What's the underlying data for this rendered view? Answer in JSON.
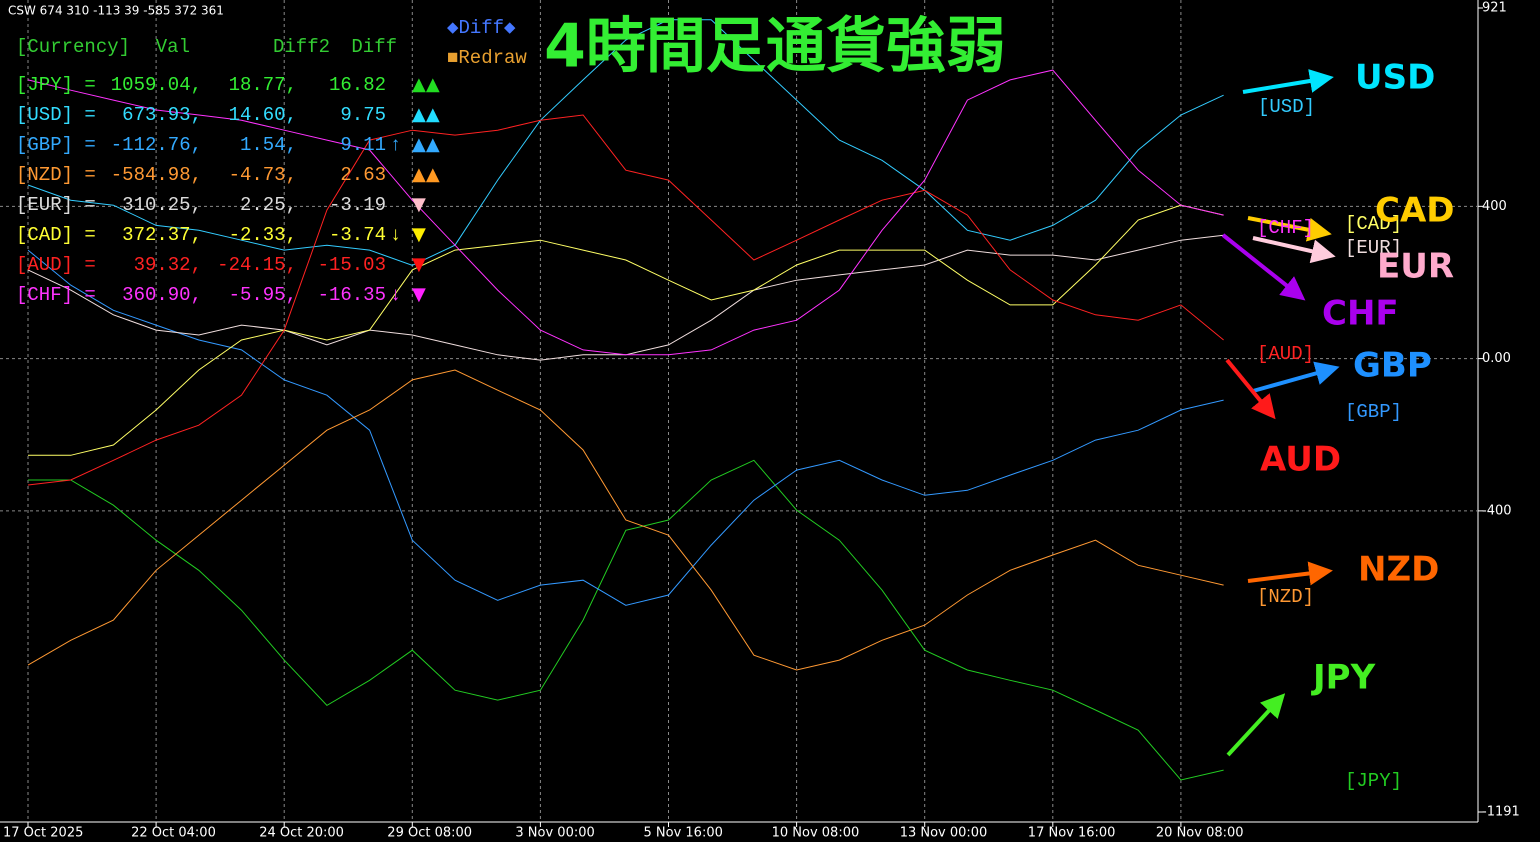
{
  "header_text": "CSW 674 310 -113 39 -585 372 361",
  "legend_items": [
    {
      "text": "◆Diff◆",
      "color": "#4477ff"
    },
    {
      "text": "■Redraw",
      "color": "#e8a030"
    }
  ],
  "info_table": {
    "header": [
      "[Currency]",
      "Val",
      "Diff2",
      "Diff"
    ],
    "header_color": "#33cc33",
    "rows": [
      {
        "label": "[JPY] =",
        "val": "1059.04,",
        "diff2": "18.77,",
        "diff": "16.82",
        "mark": "▲▲",
        "color": "#33ee33",
        "mark_color": "#22dd22"
      },
      {
        "label": "[USD] =",
        "val": "673.93,",
        "diff2": "14.60,",
        "diff": "9.75",
        "mark": "▲▲",
        "color": "#33ddff",
        "mark_color": "#22ddff"
      },
      {
        "label": "[GBP] =",
        "val": "-112.76,",
        "diff2": "1.54,",
        "diff": "9.11",
        "arrow": "↑",
        "mark": "▲▲",
        "color": "#33aaff",
        "mark_color": "#33aaff"
      },
      {
        "label": "[NZD] =",
        "val": "-584.98,",
        "diff2": "-4.73,",
        "diff": "2.63",
        "mark": "▲▲",
        "color": "#ff9933",
        "mark_color": "#ff9922"
      },
      {
        "label": "[EUR] =",
        "val": "310.25,",
        "diff2": "2.25,",
        "diff": "-3.19",
        "mark": "▼",
        "color": "#dddddd",
        "mark_color": "#ffc0cb"
      },
      {
        "label": "[CAD] =",
        "val": "372.37,",
        "diff2": "-2.33,",
        "diff": "-3.74",
        "arrow": "↓",
        "mark": "▼",
        "color": "#ffff33",
        "mark_color": "#ffee00"
      },
      {
        "label": "[AUD] =",
        "val": "39.32,",
        "diff2": "-24.15,",
        "diff": "-15.03",
        "mark": "▼",
        "color": "#ff2222",
        "mark_color": "#ff1111"
      },
      {
        "label": "[CHF] =",
        "val": "360.90,",
        "diff2": "-5.95,",
        "diff": "-16.35",
        "arrow": "↓",
        "mark": "▼",
        "color": "#ff33ff",
        "mark_color": "#ff22ff"
      }
    ]
  },
  "annotations": [
    {
      "text": "USD",
      "color": "#00e5ff"
    },
    {
      "text": "CAD",
      "color": "#ffcc00"
    },
    {
      "text": "EUR",
      "color": "#ffaacc"
    },
    {
      "text": "CHF",
      "color": "#aa00ee"
    },
    {
      "text": "GBP",
      "color": "#1e90ff"
    },
    {
      "text": "AUD",
      "color": "#ff1a1a"
    },
    {
      "text": "NZD",
      "color": "#ff6600"
    },
    {
      "text": "JPY",
      "color": "#44ee22"
    }
  ],
  "chart_data": {
    "type": "line",
    "title": "4時間足通貨強弱",
    "categories": [
      "17 Oct 2025",
      null,
      null,
      "22 Oct 04:00",
      null,
      null,
      "24 Oct 20:00",
      null,
      null,
      "29 Oct 08:00",
      null,
      null,
      "3 Nov 00:00",
      null,
      null,
      "5 Nov 16:00",
      null,
      null,
      "10 Nov 08:00",
      null,
      null,
      "13 Nov 00:00",
      null,
      null,
      "17 Nov 16:00",
      null,
      null,
      "20 Nov 08:00",
      null
    ],
    "ylim": [
      -1191,
      921
    ],
    "yticks": [
      921,
      400,
      {
        "value": 0,
        "label": "0.00"
      },
      -400,
      -1191
    ],
    "grid": true,
    "series": [
      {
        "name": "[JPY]",
        "color": "#22cc22",
        "values": [
          -319,
          -319,
          -385,
          -477,
          -556,
          -661,
          -792,
          -911,
          -845,
          -766,
          -871,
          -897,
          -871,
          -687,
          -451,
          -424,
          -319,
          -267,
          -398,
          -477,
          -608,
          -766,
          -818,
          -845,
          -871,
          -923,
          -976,
          -1107,
          -1081
        ]
      },
      {
        "name": "[USD]",
        "color": "#33ccff",
        "values": [
          456,
          416,
          403,
          350,
          337,
          311,
          285,
          298,
          285,
          245,
          298,
          469,
          626,
          732,
          837,
          890,
          890,
          784,
          679,
          574,
          521,
          442,
          337,
          311,
          350,
          416,
          548,
          640,
          692
        ]
      },
      {
        "name": "[GBP]",
        "color": "#3399ff",
        "values": [
          285,
          193,
          127,
          88,
          49,
          23,
          -56,
          -96,
          -188,
          -477,
          -582,
          -635,
          -595,
          -582,
          -648,
          -621,
          -490,
          -372,
          -293,
          -267,
          -319,
          -359,
          -346,
          -306,
          -267,
          -214,
          -188,
          -135,
          -109
        ]
      },
      {
        "name": "[NZD]",
        "color": "#ff9933",
        "values": [
          -805,
          -740,
          -687,
          -556,
          -464,
          -372,
          -280,
          -188,
          -135,
          -56,
          -30,
          -83,
          -135,
          -240,
          -424,
          -464,
          -608,
          -779,
          -818,
          -792,
          -740,
          -700,
          -621,
          -556,
          -516,
          -477,
          -543,
          -569,
          -595
        ]
      },
      {
        "name": "[EUR]",
        "color": "#f0dede",
        "values": [
          233,
          180,
          115,
          75,
          62,
          88,
          75,
          36,
          75,
          62,
          36,
          10,
          -4,
          10,
          10,
          36,
          101,
          180,
          206,
          220,
          233,
          246,
          285,
          272,
          272,
          259,
          285,
          311,
          324
        ]
      },
      {
        "name": "[CAD]",
        "color": "#ffff66",
        "values": [
          -254,
          -254,
          -227,
          -135,
          -30,
          49,
          75,
          49,
          75,
          233,
          285,
          298,
          311,
          285,
          259,
          206,
          154,
          180,
          246,
          285,
          285,
          285,
          206,
          141,
          141,
          246,
          364,
          403,
          377
        ]
      },
      {
        "name": "[AUD]",
        "color": "#ff2222",
        "values": [
          -332,
          -319,
          -267,
          -214,
          -175,
          -96,
          75,
          390,
          574,
          600,
          587,
          600,
          626,
          640,
          495,
          469,
          364,
          259,
          311,
          364,
          416,
          442,
          377,
          233,
          154,
          115,
          101,
          141,
          49
        ]
      },
      {
        "name": "[CHF]",
        "color": "#ff33ff",
        "values": [
          732,
          705,
          679,
          653,
          640,
          626,
          600,
          574,
          548,
          416,
          298,
          180,
          75,
          23,
          10,
          10,
          23,
          75,
          101,
          180,
          337,
          469,
          679,
          732,
          758,
          626,
          495,
          403,
          377
        ]
      }
    ]
  }
}
